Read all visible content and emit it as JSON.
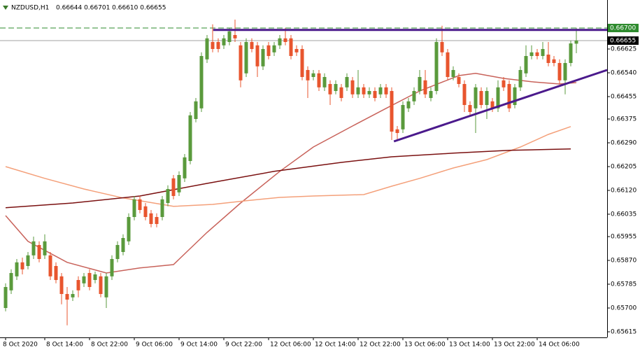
{
  "chart_data": {
    "type": "candlestick",
    "title": "NZDUSD,H1",
    "quote": "0.66644 0.66701 0.66610 0.66655",
    "bull_color": "#5a9a3c",
    "bear_color": "#e8552e",
    "categories": [
      "8 Oct 2020",
      null,
      null,
      null,
      null,
      null,
      null,
      "8 Oct 14:00",
      null,
      null,
      null,
      null,
      null,
      null,
      null,
      "8 Oct 22:00",
      null,
      null,
      null,
      null,
      null,
      null,
      null,
      "9 Oct 06:00",
      null,
      null,
      null,
      null,
      null,
      null,
      null,
      "9 Oct 14:00",
      null,
      null,
      null,
      null,
      null,
      null,
      null,
      "9 Oct 22:00",
      null,
      null,
      null,
      null,
      null,
      null,
      null,
      "12 Oct 06:00",
      null,
      null,
      null,
      null,
      null,
      null,
      null,
      "12 Oct 14:00",
      null,
      null,
      null,
      null,
      null,
      null,
      null,
      "12 Oct 22:00",
      null,
      null,
      null,
      null,
      null,
      null,
      null,
      "13 Oct 06:00",
      null,
      null,
      null,
      null,
      null,
      null,
      null,
      "13 Oct 14:00",
      null,
      null,
      null,
      null,
      null,
      null,
      null,
      "13 Oct 22:00",
      null,
      null,
      null,
      null,
      null,
      null,
      null,
      "14 Oct 06:00",
      null,
      null,
      null,
      null,
      null,
      null,
      null
    ],
    "open": [
      0.657,
      0.65763,
      0.65813,
      0.65863,
      0.6585,
      0.65888,
      0.65925,
      0.65888,
      0.65888,
      0.6585,
      0.65813,
      0.6575,
      0.65738,
      0.658,
      0.65788,
      0.65825,
      0.658,
      0.65813,
      0.65738,
      0.65813,
      0.65875,
      0.659,
      0.65938,
      0.66025,
      0.66088,
      0.66063,
      0.66038,
      0.66025,
      0.66025,
      0.66075,
      0.66163,
      0.66113,
      0.66163,
      0.66225,
      0.66375,
      0.66413,
      0.66588,
      0.6665,
      0.6665,
      0.66638,
      0.6665,
      0.66675,
      0.66638,
      0.66538,
      0.6665,
      0.66638,
      0.66563,
      0.66638,
      0.66613,
      0.66638,
      0.66663,
      0.66663,
      0.66625,
      0.66625,
      0.6655,
      0.66525,
      0.66538,
      0.66488,
      0.665,
      0.66475,
      0.66488,
      0.66488,
      0.66513,
      0.66463,
      0.66488,
      0.66463,
      0.66475,
      0.66463,
      0.66488,
      0.66475,
      0.66338,
      0.66338,
      0.66413,
      0.66438,
      0.66475,
      0.66513,
      0.6645,
      0.66475,
      0.6665,
      0.66613,
      0.66525,
      0.66525,
      0.665,
      0.66425,
      0.66413,
      0.66475,
      0.66425,
      0.66438,
      0.66413,
      0.66513,
      0.665,
      0.66425,
      0.66488,
      0.66538,
      0.666,
      0.66613,
      0.666,
      0.66605,
      0.66588,
      0.66575,
      0.66513,
      0.66575,
      0.66644
    ],
    "high": [
      0.65788,
      0.65838,
      0.65875,
      0.6588,
      0.659,
      0.65955,
      0.65938,
      0.65963,
      0.659,
      0.65863,
      0.65825,
      0.65775,
      0.65763,
      0.65813,
      0.65825,
      0.65838,
      0.6583,
      0.65825,
      0.65825,
      0.65888,
      0.65938,
      0.65963,
      0.66038,
      0.661,
      0.661,
      0.66075,
      0.6605,
      0.66038,
      0.661,
      0.66138,
      0.66175,
      0.66188,
      0.6625,
      0.664,
      0.6645,
      0.66613,
      0.66675,
      0.66713,
      0.66663,
      0.66675,
      0.667,
      0.6673,
      0.6665,
      0.66663,
      0.66663,
      0.6665,
      0.66638,
      0.6665,
      0.6665,
      0.66675,
      0.667,
      0.66675,
      0.66638,
      0.66638,
      0.66563,
      0.6655,
      0.6655,
      0.66538,
      0.66513,
      0.66513,
      0.665,
      0.66538,
      0.66525,
      0.6655,
      0.665,
      0.66488,
      0.66488,
      0.665,
      0.665,
      0.66488,
      0.6635,
      0.66438,
      0.6645,
      0.66488,
      0.6655,
      0.6655,
      0.66488,
      0.66663,
      0.66708,
      0.66625,
      0.66563,
      0.66538,
      0.66513,
      0.66438,
      0.665,
      0.66488,
      0.66488,
      0.6645,
      0.66513,
      0.66525,
      0.66513,
      0.665,
      0.66563,
      0.66638,
      0.66638,
      0.66625,
      0.6665,
      0.6665,
      0.666,
      0.66588,
      0.66588,
      0.66655,
      0.66701
    ],
    "low": [
      0.65688,
      0.6575,
      0.658,
      0.6582,
      0.65838,
      0.65875,
      0.65863,
      0.65875,
      0.658,
      0.65788,
      0.65713,
      0.65638,
      0.65725,
      0.65738,
      0.65775,
      0.65763,
      0.65788,
      0.65738,
      0.657,
      0.658,
      0.65863,
      0.65888,
      0.65925,
      0.66013,
      0.66038,
      0.66013,
      0.65988,
      0.65988,
      0.66013,
      0.66063,
      0.66088,
      0.661,
      0.6615,
      0.66213,
      0.66363,
      0.664,
      0.66575,
      0.66613,
      0.66613,
      0.66625,
      0.66638,
      0.6665,
      0.66488,
      0.66525,
      0.66613,
      0.66525,
      0.6655,
      0.66588,
      0.666,
      0.66625,
      0.66638,
      0.66588,
      0.666,
      0.66513,
      0.6645,
      0.66513,
      0.66475,
      0.66475,
      0.66425,
      0.66463,
      0.66438,
      0.66475,
      0.6645,
      0.6645,
      0.6645,
      0.6645,
      0.66438,
      0.6645,
      0.6645,
      0.663,
      0.663,
      0.66325,
      0.664,
      0.66425,
      0.66463,
      0.6645,
      0.66438,
      0.66463,
      0.666,
      0.66513,
      0.66513,
      0.66488,
      0.664,
      0.66388,
      0.66325,
      0.66413,
      0.66375,
      0.664,
      0.664,
      0.66475,
      0.664,
      0.66413,
      0.66475,
      0.66525,
      0.66588,
      0.66588,
      0.66588,
      0.66563,
      0.66563,
      0.665,
      0.66463,
      0.66563,
      0.6661
    ],
    "close": [
      0.65775,
      0.65825,
      0.65863,
      0.65838,
      0.65888,
      0.65938,
      0.65875,
      0.65938,
      0.65813,
      0.658,
      0.6575,
      0.6573,
      0.6575,
      0.65763,
      0.65813,
      0.65775,
      0.6582,
      0.6575,
      0.65813,
      0.65875,
      0.65925,
      0.6595,
      0.66025,
      0.66088,
      0.6605,
      0.66025,
      0.66,
      0.66,
      0.66088,
      0.66125,
      0.661,
      0.66175,
      0.66238,
      0.66388,
      0.66438,
      0.666,
      0.66663,
      0.66625,
      0.66625,
      0.66663,
      0.66688,
      0.66663,
      0.66513,
      0.6665,
      0.66625,
      0.66563,
      0.66625,
      0.666,
      0.66638,
      0.66663,
      0.6665,
      0.666,
      0.66613,
      0.66525,
      0.66513,
      0.66538,
      0.66488,
      0.66525,
      0.66463,
      0.665,
      0.6645,
      0.66525,
      0.66463,
      0.66488,
      0.66463,
      0.66475,
      0.6645,
      0.66488,
      0.66463,
      0.6633,
      0.66325,
      0.66425,
      0.66438,
      0.66475,
      0.66525,
      0.66463,
      0.66475,
      0.6665,
      0.66613,
      0.66525,
      0.6655,
      0.665,
      0.66425,
      0.664,
      0.66488,
      0.66425,
      0.66475,
      0.66413,
      0.66488,
      0.66488,
      0.66413,
      0.66488,
      0.6655,
      0.666,
      0.66613,
      0.666,
      0.66625,
      0.66575,
      0.66575,
      0.66513,
      0.66575,
      0.66645,
      0.66655
    ],
    "series": [
      {
        "color": "#c8625a",
        "x": [
          0,
          4,
          11,
          18,
          24,
          30,
          36,
          42,
          49,
          55,
          62,
          68,
          74,
          81,
          84,
          89,
          94,
          99,
          102
        ],
        "values": [
          0.6603,
          0.65938,
          0.65863,
          0.65825,
          0.65843,
          0.65855,
          0.6597,
          0.66075,
          0.66188,
          0.66275,
          0.6635,
          0.66413,
          0.66475,
          0.6653,
          0.66538,
          0.6652,
          0.66508,
          0.665,
          0.66505
        ]
      },
      {
        "color": "#f4a07a",
        "x": [
          0,
          7,
          14,
          21,
          30,
          37,
          43,
          49,
          55,
          64,
          69,
          74,
          80,
          86,
          92,
          97,
          101
        ],
        "values": [
          0.66205,
          0.66163,
          0.66125,
          0.66093,
          0.66063,
          0.6607,
          0.66083,
          0.66095,
          0.661,
          0.66105,
          0.66135,
          0.66163,
          0.662,
          0.6623,
          0.66275,
          0.6632,
          0.66348
        ]
      },
      {
        "color": "#7a1010",
        "x": [
          0,
          12,
          24,
          36,
          48,
          60,
          69,
          80,
          90,
          101
        ],
        "values": [
          0.66058,
          0.66075,
          0.661,
          0.66145,
          0.66188,
          0.6622,
          0.6624,
          0.66253,
          0.66263,
          0.66268
        ]
      }
    ],
    "trendlines": [
      {
        "color": "#4b1a8c",
        "x": [
          37.1,
          107.5
        ],
        "values": [
          0.66693,
          0.66693
        ]
      },
      {
        "color": "#4b1a8c",
        "x": [
          69.4,
          107.5
        ],
        "values": [
          0.66295,
          0.6655
        ]
      }
    ],
    "price_lines": [
      {
        "value": 0.667,
        "label": "0.66700",
        "color": "#2e8b2e",
        "style": "dashed"
      },
      {
        "value": 0.66655,
        "label": "0.66655",
        "color": "#000000",
        "style": "solid"
      }
    ],
    "ylim": [
      0.65595,
      0.668
    ],
    "yticks": [
      0.66625,
      {
        "value": 0.6654,
        "label": "0.66540"
      },
      0.66455,
      0.66375,
      {
        "value": 0.6629,
        "label": "0.66290"
      },
      0.66205,
      {
        "value": 0.6612,
        "label": "0.66120"
      },
      0.66035,
      0.65955,
      {
        "value": 0.6587,
        "label": "0.65870"
      },
      0.65785,
      {
        "value": 0.657,
        "label": "0.65700"
      },
      0.65615
    ]
  }
}
